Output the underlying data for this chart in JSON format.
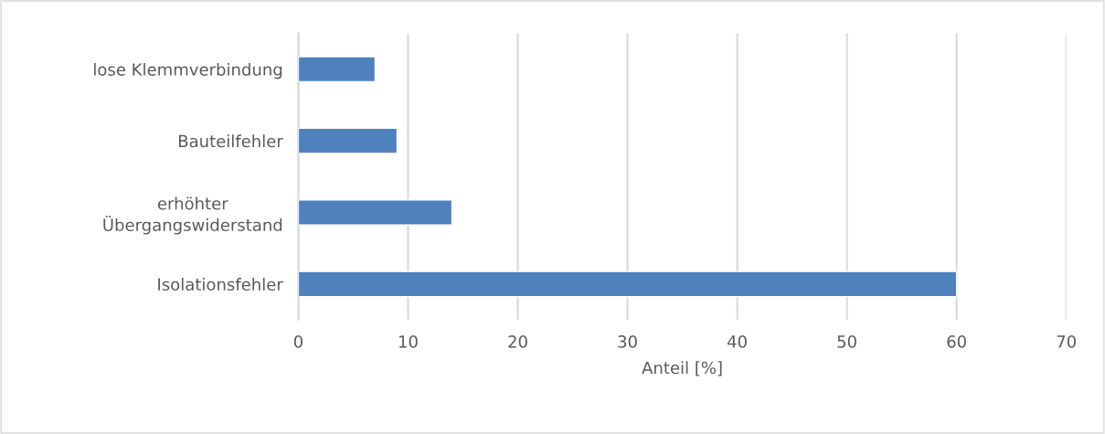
{
  "chart_data": {
    "type": "bar",
    "orientation": "horizontal",
    "categories": [
      "lose Klemmverbindung",
      "Bauteilfehler",
      "erhöhter\nÜbergangswiderstand",
      "Isolationsfehler"
    ],
    "values": [
      7,
      9,
      14,
      60
    ],
    "color": "#4f81bd",
    "xlabel": "Anteil [%]",
    "xlim": [
      0,
      70
    ],
    "xticks": [
      0,
      10,
      20,
      30,
      40,
      50,
      60,
      70
    ],
    "grid": "x"
  }
}
